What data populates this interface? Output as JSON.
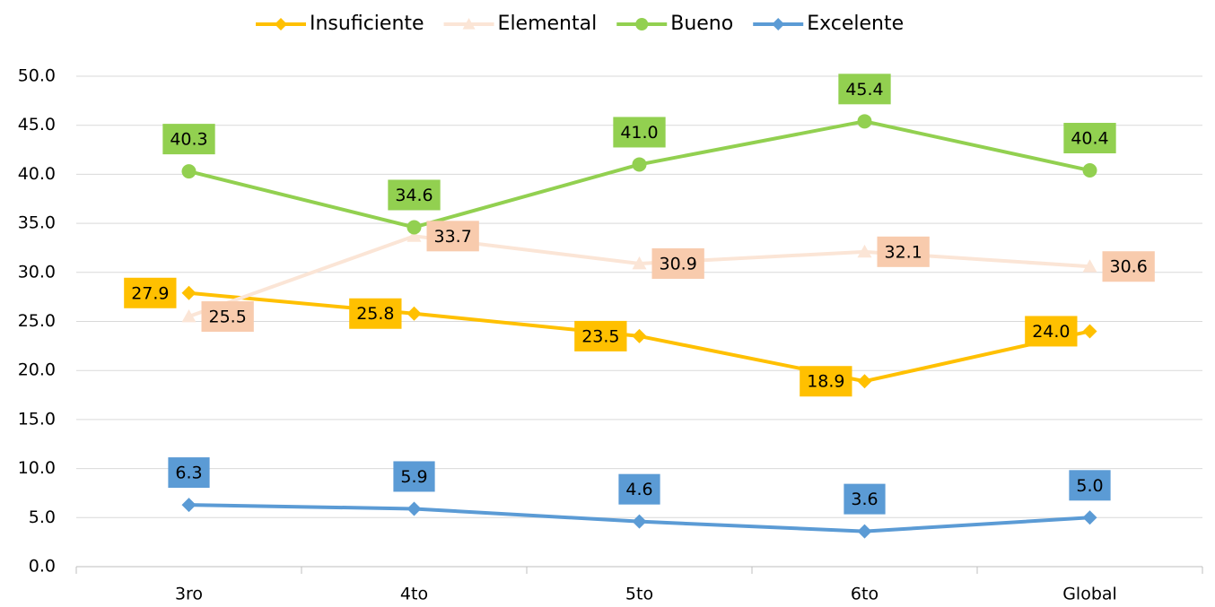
{
  "chart_data": {
    "type": "line",
    "categories": [
      "3ro",
      "4to",
      "5to",
      "6to",
      "Global"
    ],
    "series": [
      {
        "name": "Insuficiente",
        "color": "#FFC000",
        "marker": "diamond",
        "values": [
          27.9,
          25.8,
          23.5,
          18.9,
          24.0
        ],
        "value_labels": [
          "27.9",
          "25.8",
          "23.5",
          "18.9",
          "24.0"
        ]
      },
      {
        "name": "Elemental",
        "color": "#FBE5D6",
        "marker": "triangle",
        "values": [
          25.5,
          33.7,
          30.9,
          32.1,
          30.6
        ],
        "value_labels": [
          "25.5",
          "33.7",
          "30.9",
          "32.1",
          "30.6"
        ]
      },
      {
        "name": "Bueno",
        "color": "#92D050",
        "marker": "circle",
        "values": [
          40.3,
          34.6,
          41.0,
          45.4,
          40.4
        ],
        "value_labels": [
          "40.3",
          "34.6",
          "41.0",
          "45.4",
          "40.4"
        ]
      },
      {
        "name": "Excelente",
        "color": "#5B9BD5",
        "marker": "diamond",
        "values": [
          6.3,
          5.9,
          4.6,
          3.6,
          5.0
        ],
        "value_labels": [
          "6.3",
          "5.9",
          "4.6",
          "3.6",
          "5.0"
        ]
      }
    ],
    "ylim": [
      0,
      50
    ],
    "yticks": [
      {
        "value": 0,
        "label": "0.0"
      },
      {
        "value": 5,
        "label": "5.0"
      },
      {
        "value": 10,
        "label": "10.0"
      },
      {
        "value": 15,
        "label": "15.0"
      },
      {
        "value": 20,
        "label": "20.0"
      },
      {
        "value": 25,
        "label": "25.0"
      },
      {
        "value": 30,
        "label": "30.0"
      },
      {
        "value": 35,
        "label": "35.0"
      },
      {
        "value": 40,
        "label": "40.0"
      },
      {
        "value": 45,
        "label": "45.0"
      },
      {
        "value": 50,
        "label": "50.0"
      }
    ],
    "grid": true,
    "legend": "top"
  }
}
